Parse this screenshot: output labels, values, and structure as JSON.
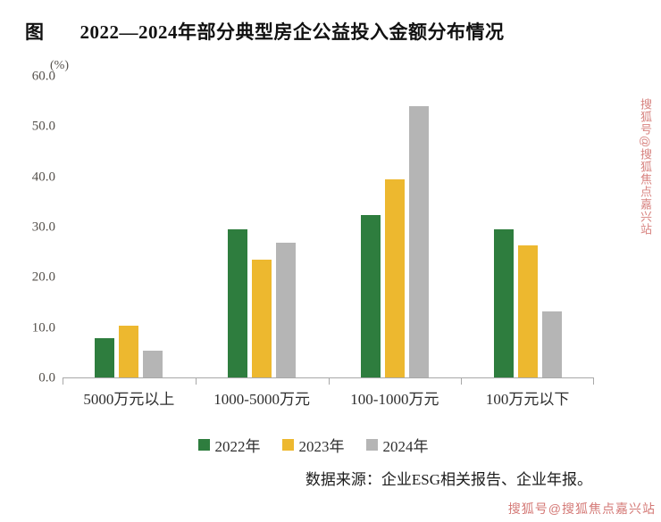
{
  "title": {
    "figure_label": "图",
    "text": "2022—2024年部分典型房企公益投入金额分布情况"
  },
  "chart_data": {
    "type": "bar",
    "title": "2022—2024年部分典型房企公益投入金额分布情况",
    "ylabel": "(%)",
    "xlabel": "",
    "ylim": [
      0,
      60
    ],
    "grid": false,
    "legend_position": "bottom",
    "yticks": [
      "0.0",
      "10.0",
      "20.0",
      "30.0",
      "40.0",
      "50.0",
      "60.0"
    ],
    "categories": [
      "5000万元以上",
      "1000-5000万元",
      "100-1000万元",
      "100万元以下"
    ],
    "series": [
      {
        "name": "2022年",
        "color": "#2e7d3e",
        "values": [
          7.9,
          29.5,
          32.4,
          29.5
        ]
      },
      {
        "name": "2023年",
        "color": "#edb82f",
        "values": [
          10.3,
          23.5,
          39.4,
          26.2
        ]
      },
      {
        "name": "2024年",
        "color": "#b5b5b5",
        "values": [
          5.3,
          26.8,
          53.9,
          13.2
        ]
      }
    ]
  },
  "source": "数据来源：企业ESG相关报告、企业年报。",
  "watermark": "搜狐号@搜狐焦点嘉兴站"
}
